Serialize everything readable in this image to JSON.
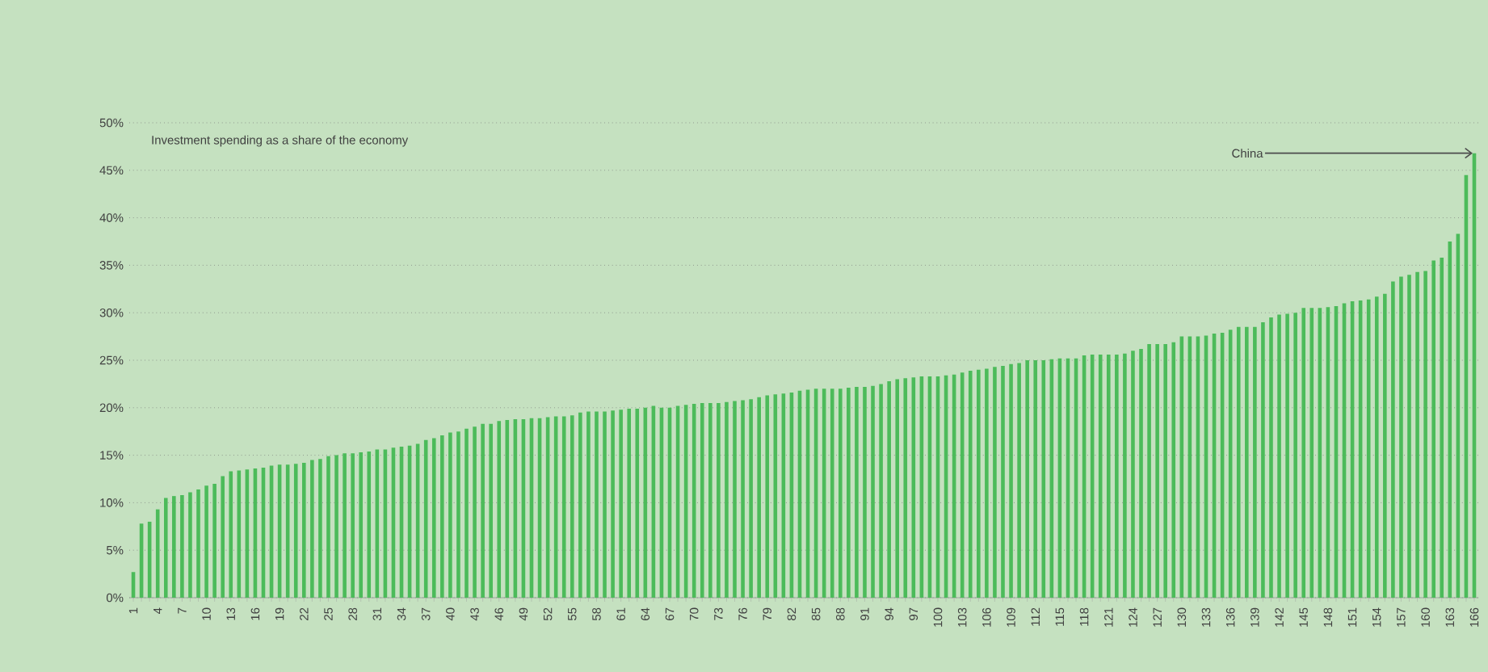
{
  "chart_data": {
    "type": "bar",
    "title": "Investment spending as a share of the economy",
    "categories": [
      "1",
      null,
      null,
      "4",
      null,
      null,
      "7",
      null,
      null,
      "10",
      null,
      null,
      "13",
      null,
      null,
      "16",
      null,
      null,
      "19",
      null,
      null,
      "22",
      null,
      null,
      "25",
      null,
      null,
      "28",
      null,
      null,
      "31",
      null,
      null,
      "34",
      null,
      null,
      "37",
      null,
      null,
      "40",
      null,
      null,
      "43",
      null,
      null,
      "46",
      null,
      null,
      "49",
      null,
      null,
      "52",
      null,
      null,
      "55",
      null,
      null,
      "58",
      null,
      null,
      "61",
      null,
      null,
      "64",
      null,
      null,
      "67",
      null,
      null,
      "70",
      null,
      null,
      "73",
      null,
      null,
      "76",
      null,
      null,
      "79",
      null,
      null,
      "82",
      null,
      null,
      "85",
      null,
      null,
      "88",
      null,
      null,
      "91",
      null,
      null,
      "94",
      null,
      null,
      "97",
      null,
      null,
      "100",
      null,
      null,
      "103",
      null,
      null,
      "106",
      null,
      null,
      "109",
      null,
      null,
      "112",
      null,
      null,
      "115",
      null,
      null,
      "118",
      null,
      null,
      "121",
      null,
      null,
      "124",
      null,
      null,
      "127",
      null,
      null,
      "130",
      null,
      null,
      "133",
      null,
      null,
      "136",
      null,
      null,
      "139",
      null,
      null,
      "142",
      null,
      null,
      "145",
      null,
      null,
      "148",
      null,
      null,
      "151",
      null,
      null,
      "154",
      null,
      null,
      "157",
      null,
      null,
      "160",
      null,
      null,
      "163",
      null,
      null,
      "166"
    ],
    "values": [
      2.7,
      7.8,
      8.0,
      9.3,
      10.5,
      10.7,
      10.8,
      11.1,
      11.4,
      11.8,
      12.0,
      12.8,
      13.3,
      13.4,
      13.5,
      13.6,
      13.7,
      13.9,
      14.0,
      14.0,
      14.1,
      14.2,
      14.5,
      14.6,
      14.9,
      15.0,
      15.2,
      15.2,
      15.3,
      15.4,
      15.6,
      15.6,
      15.8,
      15.9,
      16.0,
      16.2,
      16.6,
      16.8,
      17.1,
      17.4,
      17.5,
      17.8,
      18.0,
      18.3,
      18.3,
      18.6,
      18.7,
      18.8,
      18.8,
      18.9,
      18.9,
      19.0,
      19.1,
      19.1,
      19.2,
      19.5,
      19.6,
      19.6,
      19.6,
      19.7,
      19.8,
      19.9,
      19.9,
      20.0,
      20.2,
      20.0,
      20.0,
      20.2,
      20.3,
      20.4,
      20.5,
      20.5,
      20.5,
      20.6,
      20.7,
      20.8,
      20.9,
      21.1,
      21.3,
      21.4,
      21.5,
      21.6,
      21.8,
      21.9,
      22.0,
      22.0,
      22.0,
      22.0,
      22.1,
      22.2,
      22.2,
      22.3,
      22.5,
      22.8,
      23.0,
      23.1,
      23.2,
      23.3,
      23.3,
      23.3,
      23.4,
      23.5,
      23.7,
      23.9,
      24.0,
      24.1,
      24.3,
      24.4,
      24.6,
      24.7,
      25.0,
      25.0,
      25.0,
      25.1,
      25.2,
      25.2,
      25.2,
      25.5,
      25.6,
      25.6,
      25.6,
      25.6,
      25.7,
      26.0,
      26.2,
      26.7,
      26.7,
      26.7,
      26.9,
      27.5,
      27.5,
      27.5,
      27.6,
      27.8,
      27.9,
      28.2,
      28.5,
      28.5,
      28.5,
      29.0,
      29.5,
      29.8,
      29.9,
      30.0,
      30.5,
      30.5,
      30.5,
      30.6,
      30.7,
      31.0,
      31.2,
      31.3,
      31.4,
      31.7,
      32.0,
      33.3,
      33.8,
      34.0,
      34.3,
      34.4,
      35.5,
      35.8,
      37.5,
      38.3,
      44.5,
      46.8
    ],
    "color": "#4cbb5a",
    "ylim": [
      0,
      50
    ],
    "yticks": [
      {
        "value": 0,
        "label": "0%"
      },
      {
        "value": 5,
        "label": "5%"
      },
      {
        "value": 10,
        "label": "10%"
      },
      {
        "value": 15,
        "label": "15%"
      },
      {
        "value": 20,
        "label": "20%"
      },
      {
        "value": 25,
        "label": "25%"
      },
      {
        "value": 30,
        "label": "30%"
      },
      {
        "value": 35,
        "label": "35%"
      },
      {
        "value": 40,
        "label": "40%"
      },
      {
        "value": 45,
        "label": "45%"
      },
      {
        "value": 50,
        "label": "50%"
      }
    ],
    "grid": "y",
    "annotations": [
      {
        "text": "China",
        "x": "166",
        "y": 46.8
      }
    ]
  }
}
